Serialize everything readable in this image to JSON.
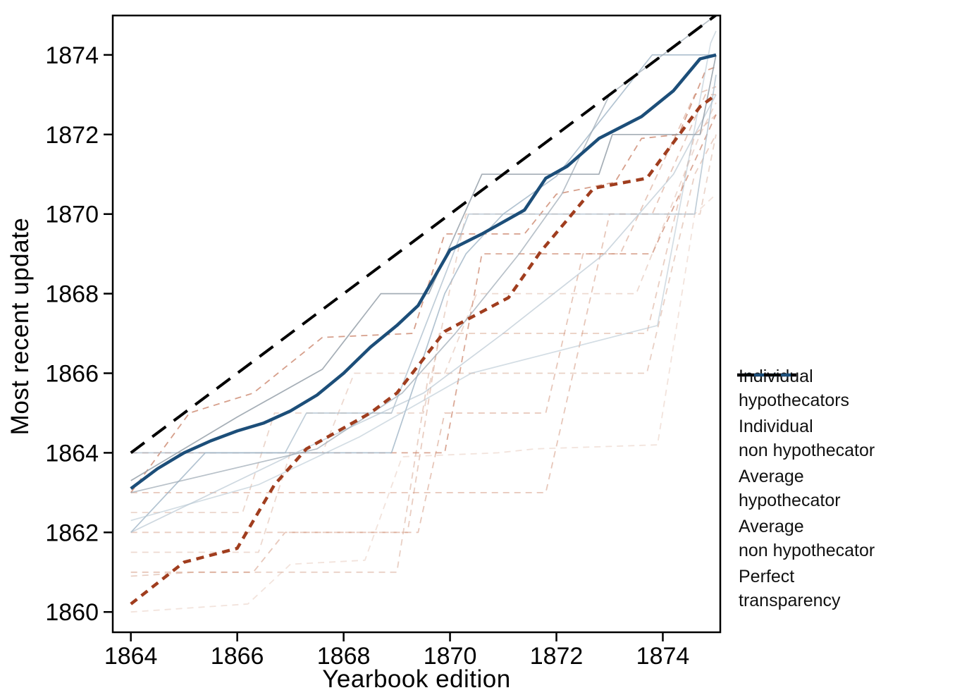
{
  "figure": {
    "background": "#ffffff",
    "axis_color": "#000000"
  },
  "chart_data": {
    "type": "line",
    "title": "",
    "xlabel": "Yearbook edition",
    "ylabel": "Most recent update",
    "x_ticks": [
      1864,
      1866,
      1868,
      1870,
      1872,
      1874
    ],
    "y_ticks": [
      1860,
      1862,
      1864,
      1866,
      1868,
      1870,
      1872,
      1874
    ],
    "xlim": [
      1863.66,
      1875.08
    ],
    "ylim": [
      1859.49,
      1874.99
    ],
    "grid": false,
    "legend_position": "right-outside",
    "series_groups": [
      {
        "id": "individual_hypothecators",
        "legend_label": "Individual hypothecators",
        "style": {
          "color": "#cf9075",
          "width": 1.8,
          "dash": "9 7",
          "opacity": 0.5
        },
        "lines": [
          {
            "points": [
              [
                1864,
                1863
              ],
              [
                1871.8,
                1863
              ],
              [
                1873.0,
                1870
              ],
              [
                1873.8,
                1870
              ],
              [
                1874.8,
                1873
              ],
              [
                1875,
                1873
              ]
            ]
          },
          {
            "points": [
              [
                1864,
                1862
              ],
              [
                1869.2,
                1862
              ],
              [
                1869.8,
                1867
              ],
              [
                1873.7,
                1867
              ],
              [
                1874.6,
                1872
              ],
              [
                1875,
                1872.5
              ]
            ],
            "opacity": 0.45
          },
          {
            "points": [
              [
                1864,
                1860.9
              ],
              [
                1865.2,
                1861
              ],
              [
                1869.0,
                1861
              ],
              [
                1869.6,
                1866
              ],
              [
                1873.7,
                1866
              ],
              [
                1874.6,
                1871
              ],
              [
                1875,
                1872
              ]
            ],
            "color": "#d4a18c"
          },
          {
            "points": [
              [
                1864,
                1864
              ],
              [
                1869.9,
                1864
              ],
              [
                1870.6,
                1869
              ],
              [
                1873.8,
                1869
              ],
              [
                1875,
                1872.5
              ]
            ],
            "color": "#c67a5e",
            "opacity": 0.65
          },
          {
            "points": [
              [
                1864,
                1861.5
              ],
              [
                1866.4,
                1861.5
              ],
              [
                1867.0,
                1864
              ],
              [
                1867.6,
                1864
              ],
              [
                1868.2,
                1866
              ],
              [
                1869.9,
                1866
              ],
              [
                1870.5,
                1868
              ],
              [
                1873.5,
                1868
              ],
              [
                1874.7,
                1872
              ],
              [
                1875,
                1872.8
              ]
            ],
            "color": "#d8ab97",
            "opacity": 0.45
          },
          {
            "points": [
              [
                1864,
                1862.5
              ],
              [
                1866.1,
                1862.5
              ],
              [
                1866.7,
                1865
              ],
              [
                1869.5,
                1865
              ],
              [
                1870.3,
                1870
              ],
              [
                1874.7,
                1870
              ],
              [
                1875,
                1872
              ]
            ],
            "color": "#d2a48e",
            "opacity": 0.45
          },
          {
            "points": [
              [
                1864,
                1861
              ],
              [
                1866.3,
                1861
              ],
              [
                1866.9,
                1862
              ],
              [
                1869.4,
                1862
              ],
              [
                1869.9,
                1865
              ],
              [
                1871.8,
                1865
              ],
              [
                1872.5,
                1869
              ],
              [
                1873.2,
                1869
              ],
              [
                1874.6,
                1873
              ],
              [
                1875,
                1873.2
              ]
            ]
          },
          {
            "points": [
              [
                1864,
                1863
              ],
              [
                1865.1,
                1865
              ],
              [
                1866.3,
                1865.5
              ],
              [
                1867.6,
                1866.9
              ],
              [
                1869.3,
                1867
              ],
              [
                1869.9,
                1869.5
              ],
              [
                1871.4,
                1869.5
              ],
              [
                1872.0,
                1870.5
              ],
              [
                1873.1,
                1870.8
              ],
              [
                1873.6,
                1871.9
              ],
              [
                1874.3,
                1872
              ],
              [
                1874.8,
                1873.6
              ],
              [
                1875,
                1873.7
              ]
            ],
            "color": "#c4765a",
            "opacity": 0.7
          },
          {
            "points": [
              [
                1864,
                1860
              ],
              [
                1866.2,
                1860.2
              ],
              [
                1867.0,
                1861.2
              ],
              [
                1868.4,
                1861.3
              ],
              [
                1869.1,
                1863.9
              ],
              [
                1870.9,
                1864
              ],
              [
                1871.6,
                1864.1
              ],
              [
                1873.9,
                1864.2
              ],
              [
                1874.6,
                1870
              ],
              [
                1875,
                1870.5
              ]
            ],
            "color": "#dcb5a4",
            "opacity": 0.38
          }
        ]
      },
      {
        "id": "individual_non_hypothecators",
        "legend_label": "Individual non hypothecator",
        "style": {
          "color": "#a9bccb",
          "width": 1.7,
          "dash": "",
          "opacity": 0.8
        },
        "lines": [
          {
            "points": [
              [
                1864,
                1864
              ],
              [
                1866.9,
                1864
              ],
              [
                1867.3,
                1865
              ],
              [
                1868.9,
                1865
              ],
              [
                1870.35,
                1870
              ],
              [
                1874.6,
                1870
              ],
              [
                1875,
                1873.5
              ]
            ],
            "opacity": 0.75
          },
          {
            "points": [
              [
                1864,
                1862
              ],
              [
                1865.4,
                1864
              ],
              [
                1868.9,
                1864
              ],
              [
                1869.9,
                1868
              ],
              [
                1870.3,
                1869
              ],
              [
                1871.0,
                1870
              ],
              [
                1872.0,
                1870.95
              ],
              [
                1873.8,
                1874
              ],
              [
                1875,
                1874
              ]
            ],
            "color": "#9fb4c6"
          },
          {
            "points": [
              [
                1864,
                1862
              ],
              [
                1867.1,
                1864
              ],
              [
                1869.5,
                1865.5
              ],
              [
                1871.0,
                1867
              ],
              [
                1872.9,
                1869
              ],
              [
                1874.2,
                1871
              ],
              [
                1875,
                1873
              ]
            ],
            "color": "#b3c3cf",
            "opacity": 0.65
          },
          {
            "points": [
              [
                1864,
                1863
              ],
              [
                1867.5,
                1864.1
              ],
              [
                1869.1,
                1865.5
              ],
              [
                1870.1,
                1867
              ],
              [
                1871.3,
                1869
              ],
              [
                1872.1,
                1870.5
              ],
              [
                1873.0,
                1873
              ],
              [
                1875,
                1875
              ]
            ],
            "color": "#9aa7b2",
            "opacity": 0.7
          },
          {
            "points": [
              [
                1864,
                1863.3
              ],
              [
                1866.0,
                1864.9
              ],
              [
                1867.6,
                1866.1
              ],
              [
                1868.7,
                1868
              ],
              [
                1869.6,
                1868
              ],
              [
                1870.6,
                1871
              ],
              [
                1872.8,
                1871
              ],
              [
                1873.05,
                1872
              ],
              [
                1874.7,
                1872
              ],
              [
                1875,
                1874
              ]
            ],
            "color": "#8e9aa4",
            "opacity": 0.8
          },
          {
            "points": [
              [
                1864,
                1862.3
              ],
              [
                1866.4,
                1863.2
              ],
              [
                1868.3,
                1864.4
              ],
              [
                1870.4,
                1866
              ],
              [
                1873.9,
                1867.2
              ],
              [
                1874.9,
                1874.3
              ],
              [
                1875,
                1874.6
              ]
            ],
            "color": "#b6c6d2",
            "opacity": 0.6
          }
        ]
      },
      {
        "id": "average_hypothecator",
        "legend_label": "Average hypothecator",
        "style": {
          "color": "#a03d1e",
          "width": 4.5,
          "dash": "11 8",
          "opacity": 1
        },
        "lines": [
          {
            "points": [
              [
                1864,
                1860.2
              ],
              [
                1865,
                1861.25
              ],
              [
                1866,
                1861.6
              ],
              [
                1866.7,
                1863.2
              ],
              [
                1867.3,
                1864.1
              ],
              [
                1868.5,
                1865
              ],
              [
                1869,
                1865.5
              ],
              [
                1869.9,
                1867.05
              ],
              [
                1871.1,
                1867.9
              ],
              [
                1871.7,
                1869.05
              ],
              [
                1872.7,
                1870.65
              ],
              [
                1873.7,
                1870.9
              ],
              [
                1874.7,
                1872.7
              ],
              [
                1875,
                1873
              ]
            ]
          }
        ]
      },
      {
        "id": "average_non_hypothecator",
        "legend_label": "Average non hypothecator",
        "style": {
          "color": "#1c4e79",
          "width": 4.5,
          "dash": "",
          "opacity": 1
        },
        "lines": [
          {
            "points": [
              [
                1864,
                1863.1
              ],
              [
                1864.5,
                1863.6
              ],
              [
                1865,
                1864
              ],
              [
                1865.5,
                1864.3
              ],
              [
                1866,
                1864.55
              ],
              [
                1866.5,
                1864.75
              ],
              [
                1867,
                1865.05
              ],
              [
                1867.5,
                1865.45
              ],
              [
                1868,
                1866
              ],
              [
                1868.5,
                1866.65
              ],
              [
                1869,
                1867.2
              ],
              [
                1869.4,
                1867.7
              ],
              [
                1870,
                1869.1
              ],
              [
                1870.6,
                1869.5
              ],
              [
                1871.4,
                1870.1
              ],
              [
                1871.8,
                1870.9
              ],
              [
                1872.2,
                1871.2
              ],
              [
                1872.8,
                1871.9
              ],
              [
                1873.6,
                1872.45
              ],
              [
                1874.2,
                1873.1
              ],
              [
                1874.7,
                1873.9
              ],
              [
                1875,
                1874
              ]
            ]
          }
        ]
      },
      {
        "id": "perfect_transparency",
        "legend_label": "Perfect transparency",
        "style": {
          "color": "#000000",
          "width": 4,
          "dash": "24 14",
          "opacity": 1
        },
        "lines": [
          {
            "points": [
              [
                1864,
                1864
              ],
              [
                1875,
                1875
              ]
            ]
          }
        ]
      }
    ]
  },
  "legend": {
    "items": [
      {
        "line1": "Individual",
        "line2": "hypothecators",
        "swatch": "individual_hypothecators"
      },
      {
        "line1": "Individual",
        "line2": "non hypothecator",
        "swatch": "individual_non_hypothecators"
      },
      {
        "line1": "Average",
        "line2": "hypothecator",
        "swatch": "average_hypothecator"
      },
      {
        "line1": "Average",
        "line2": "non hypothecator",
        "swatch": "average_non_hypothecator"
      },
      {
        "line1": "Perfect",
        "line2": "transparency",
        "swatch": "perfect_transparency"
      }
    ]
  }
}
